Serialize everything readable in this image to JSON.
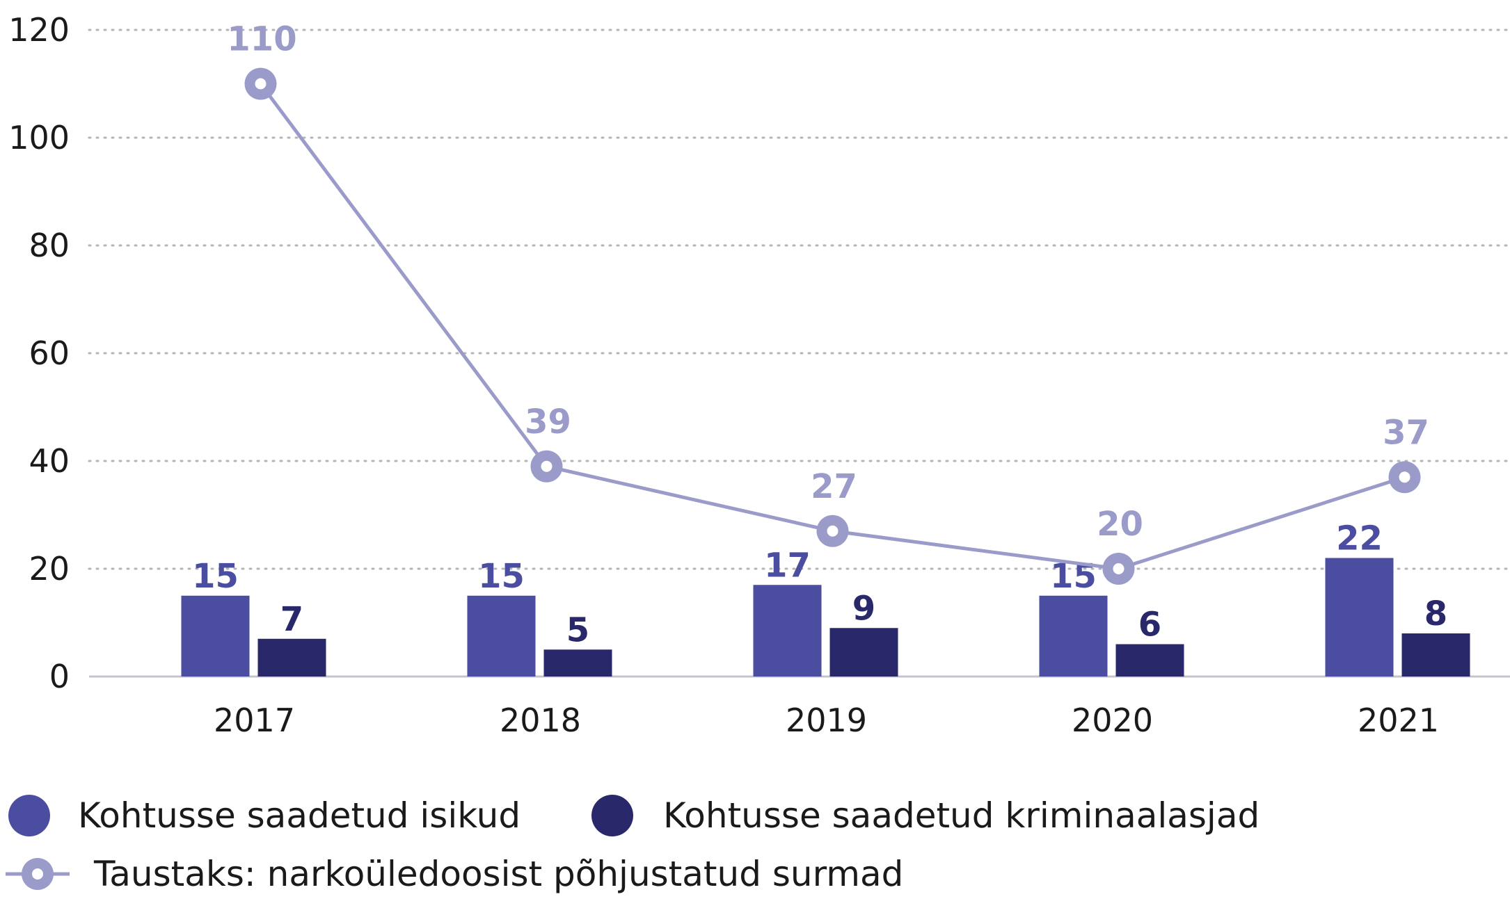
{
  "chart_data": {
    "type": "bar",
    "categories": [
      "2017",
      "2018",
      "2019",
      "2020",
      "2021"
    ],
    "ylim": [
      0,
      120
    ],
    "yticks": [
      0,
      20,
      40,
      60,
      80,
      100,
      120
    ],
    "grid": true,
    "legend_position": "bottom-left",
    "series": [
      {
        "name": "Kohtusse saadetud isikud",
        "kind": "bar",
        "color": "#4b4ea0",
        "values": [
          15,
          15,
          17,
          15,
          22
        ]
      },
      {
        "name": "Kohtusse saadetud kriminaalasjad",
        "kind": "bar",
        "color": "#28286a",
        "values": [
          7,
          5,
          9,
          6,
          8
        ]
      },
      {
        "name": "Taustaks: narkoüledoosist põhjustatud surmad",
        "kind": "line",
        "color": "#9a9bc9",
        "values": [
          110,
          39,
          27,
          20,
          37
        ]
      }
    ]
  }
}
